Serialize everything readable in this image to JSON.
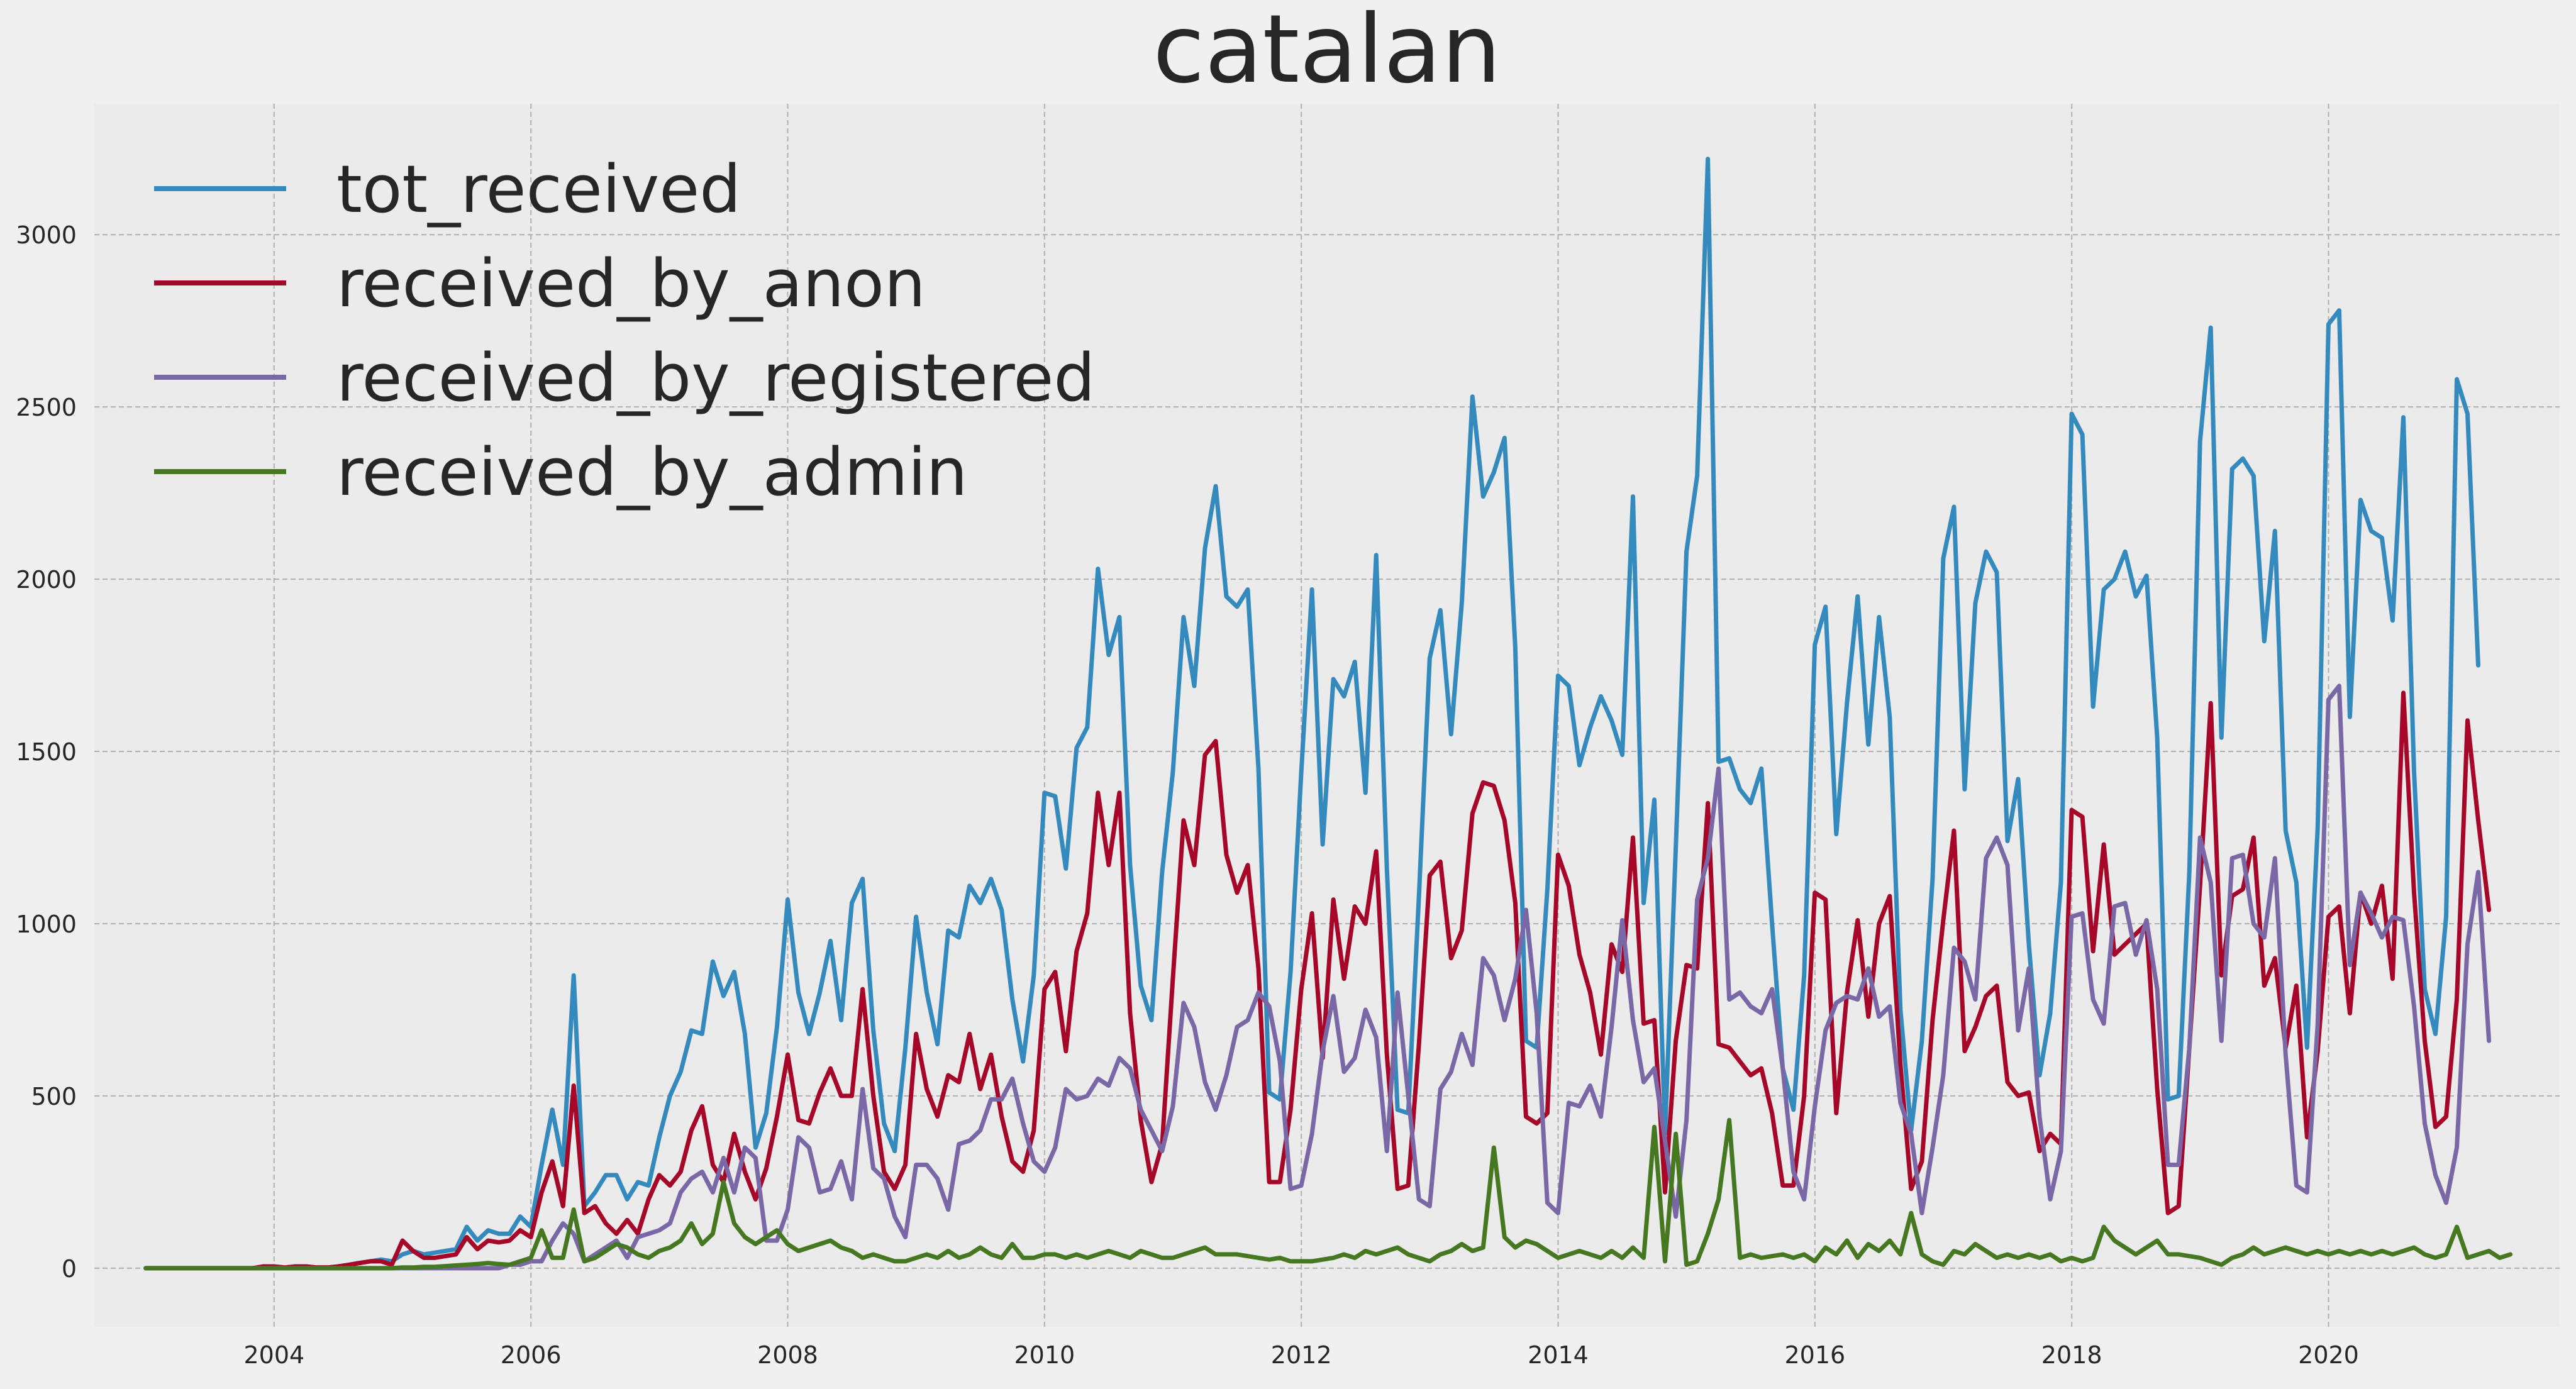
{
  "chart_data": {
    "type": "line",
    "title": "catalan",
    "xlabel": "",
    "ylabel": "",
    "xlim": [
      2002.6,
      2021.8
    ],
    "ylim": [
      -170,
      3380
    ],
    "xticks": [
      2004,
      2006,
      2008,
      2010,
      2012,
      2014,
      2016,
      2018,
      2020
    ],
    "yticks": [
      0,
      500,
      1000,
      1500,
      2000,
      2500,
      3000
    ],
    "grid": true,
    "legend_position": "top-left",
    "x_start": 2003.0,
    "x_step": 0.08333,
    "series": [
      {
        "name": "tot_received",
        "color": "#348abd",
        "values": [
          0,
          0,
          0,
          0,
          0,
          0,
          0,
          0,
          0,
          0,
          0,
          5,
          5,
          2,
          5,
          5,
          2,
          2,
          5,
          10,
          15,
          20,
          25,
          20,
          40,
          50,
          40,
          45,
          50,
          55,
          120,
          80,
          110,
          100,
          100,
          150,
          120,
          300,
          460,
          300,
          850,
          180,
          220,
          270,
          270,
          200,
          250,
          240,
          380,
          500,
          570,
          690,
          680,
          890,
          790,
          860,
          680,
          350,
          450,
          700,
          1070,
          800,
          680,
          800,
          950,
          720,
          1060,
          1130,
          690,
          420,
          340,
          640,
          1020,
          800,
          650,
          980,
          960,
          1110,
          1060,
          1130,
          1040,
          780,
          600,
          850,
          1380,
          1370,
          1160,
          1510,
          1570,
          2030,
          1780,
          1890,
          1170,
          820,
          720,
          1150,
          1440,
          1890,
          1690,
          2090,
          2270,
          1950,
          1920,
          1970,
          1450,
          510,
          490,
          860,
          1440,
          1970,
          1230,
          1710,
          1660,
          1760,
          1380,
          2070,
          1160,
          460,
          450,
          1080,
          1770,
          1910,
          1550,
          1930,
          2530,
          2240,
          2310,
          2410,
          1800,
          660,
          640,
          1100,
          1720,
          1690,
          1460,
          1570,
          1660,
          1590,
          1490,
          2240,
          1060,
          1360,
          390,
          1220,
          2080,
          2300,
          3220,
          1470,
          1480,
          1390,
          1350,
          1450,
          1000,
          580,
          460,
          850,
          1810,
          1920,
          1260,
          1640,
          1950,
          1520,
          1890,
          1600,
          750,
          400,
          660,
          1130,
          2060,
          2210,
          1390,
          1930,
          2080,
          2020,
          1240,
          1420,
          940,
          560,
          740,
          1120,
          2480,
          2420,
          1630,
          1970,
          2000,
          2080,
          1950,
          2010,
          1540,
          490,
          500,
          1150,
          2400,
          2730,
          1540,
          2320,
          2350,
          2300,
          1820,
          2140,
          1270,
          1120,
          640,
          1280,
          2740,
          2780,
          1600,
          2230,
          2140,
          2120,
          1880,
          2470,
          1440,
          810,
          680,
          1020,
          2580,
          2480,
          1750
        ]
      },
      {
        "name": "received_by_anon",
        "color": "#a60628",
        "values": [
          0,
          0,
          0,
          0,
          0,
          0,
          0,
          0,
          0,
          0,
          0,
          5,
          5,
          2,
          5,
          5,
          2,
          2,
          5,
          10,
          15,
          20,
          20,
          10,
          80,
          50,
          30,
          30,
          35,
          40,
          90,
          55,
          80,
          75,
          80,
          110,
          90,
          220,
          310,
          180,
          530,
          160,
          180,
          130,
          100,
          140,
          100,
          200,
          270,
          240,
          280,
          400,
          470,
          300,
          250,
          390,
          280,
          200,
          290,
          440,
          620,
          430,
          420,
          510,
          580,
          500,
          500,
          810,
          500,
          280,
          230,
          300,
          680,
          520,
          440,
          560,
          540,
          680,
          520,
          620,
          440,
          310,
          280,
          400,
          810,
          860,
          630,
          920,
          1030,
          1380,
          1170,
          1380,
          740,
          430,
          250,
          360,
          840,
          1300,
          1170,
          1490,
          1530,
          1200,
          1090,
          1170,
          870,
          250,
          250,
          460,
          810,
          1030,
          610,
          1070,
          840,
          1050,
          1000,
          1210,
          620,
          230,
          240,
          650,
          1140,
          1180,
          900,
          980,
          1320,
          1410,
          1400,
          1300,
          1060,
          440,
          420,
          450,
          1200,
          1110,
          910,
          800,
          620,
          940,
          860,
          1250,
          710,
          720,
          220,
          660,
          880,
          870,
          1350,
          650,
          640,
          600,
          560,
          580,
          450,
          240,
          240,
          500,
          1090,
          1070,
          450,
          800,
          1010,
          730,
          1000,
          1080,
          590,
          230,
          310,
          720,
          1010,
          1270,
          630,
          700,
          790,
          820,
          540,
          500,
          510,
          340,
          390,
          360,
          1330,
          1310,
          920,
          1230,
          910,
          940,
          970,
          1000,
          520,
          160,
          180,
          640,
          1110,
          1640,
          850,
          1080,
          1100,
          1250,
          820,
          900,
          640,
          820,
          380,
          630,
          1020,
          1050,
          740,
          1090,
          1000,
          1110,
          840,
          1670,
          1090,
          660,
          410,
          440,
          780,
          1590,
          1300,
          1040
        ]
      },
      {
        "name": "received_by_registered",
        "color": "#7a68a6",
        "values": [
          0,
          0,
          0,
          0,
          0,
          0,
          0,
          0,
          0,
          0,
          0,
          0,
          0,
          0,
          0,
          0,
          0,
          0,
          0,
          0,
          0,
          0,
          0,
          0,
          0,
          0,
          0,
          0,
          0,
          0,
          0,
          0,
          0,
          0,
          10,
          10,
          20,
          20,
          80,
          130,
          100,
          20,
          40,
          60,
          80,
          30,
          90,
          100,
          110,
          130,
          220,
          260,
          280,
          220,
          320,
          220,
          350,
          320,
          80,
          80,
          170,
          380,
          350,
          220,
          230,
          310,
          200,
          520,
          290,
          260,
          150,
          90,
          300,
          300,
          260,
          170,
          360,
          370,
          400,
          490,
          490,
          550,
          420,
          310,
          280,
          350,
          520,
          490,
          500,
          550,
          530,
          610,
          580,
          460,
          400,
          340,
          470,
          770,
          700,
          540,
          460,
          560,
          700,
          720,
          800,
          760,
          600,
          230,
          240,
          390,
          630,
          790,
          570,
          610,
          750,
          670,
          340,
          800,
          500,
          200,
          180,
          520,
          570,
          680,
          590,
          900,
          850,
          720,
          840,
          1040,
          740,
          190,
          160,
          480,
          470,
          530,
          440,
          700,
          1010,
          720,
          540,
          580,
          370,
          150,
          430,
          1070,
          1190,
          1450,
          780,
          800,
          760,
          740,
          810,
          580,
          280,
          200,
          470,
          690,
          770,
          790,
          780,
          870,
          730,
          760,
          480,
          390,
          160,
          350,
          560,
          930,
          890,
          780,
          1190,
          1250,
          1170,
          690,
          870,
          440,
          200,
          340,
          1020,
          1030,
          780,
          710,
          1050,
          1060,
          910,
          1010,
          810,
          300,
          300,
          640,
          1250,
          1120,
          660,
          1190,
          1200,
          1000,
          960,
          1190,
          620,
          240,
          220,
          710,
          1650,
          1690,
          880,
          1090,
          1030,
          960,
          1020,
          1010,
          760,
          420,
          270,
          190,
          350,
          940,
          1150,
          660
        ]
      },
      {
        "name": "received_by_admin",
        "color": "#467821",
        "values": [
          0,
          0,
          0,
          0,
          0,
          0,
          0,
          0,
          0,
          0,
          0,
          0,
          0,
          0,
          0,
          0,
          0,
          0,
          0,
          0,
          0,
          0,
          0,
          0,
          2,
          2,
          4,
          4,
          6,
          8,
          10,
          12,
          15,
          12,
          10,
          20,
          30,
          110,
          30,
          30,
          170,
          20,
          30,
          50,
          70,
          60,
          40,
          30,
          50,
          60,
          80,
          130,
          70,
          100,
          250,
          130,
          90,
          70,
          90,
          110,
          70,
          50,
          60,
          70,
          80,
          60,
          50,
          30,
          40,
          30,
          20,
          20,
          30,
          40,
          30,
          50,
          30,
          40,
          60,
          40,
          30,
          70,
          30,
          30,
          40,
          40,
          30,
          40,
          30,
          40,
          50,
          40,
          30,
          50,
          40,
          30,
          30,
          40,
          50,
          60,
          40,
          40,
          40,
          35,
          30,
          25,
          30,
          20,
          20,
          20,
          25,
          30,
          40,
          30,
          50,
          40,
          50,
          60,
          40,
          30,
          20,
          40,
          50,
          70,
          50,
          60,
          350,
          90,
          60,
          80,
          70,
          50,
          30,
          40,
          50,
          40,
          30,
          50,
          30,
          60,
          30,
          410,
          20,
          390,
          10,
          20,
          100,
          200,
          430,
          30,
          40,
          30,
          35,
          40,
          30,
          40,
          20,
          60,
          40,
          80,
          30,
          70,
          50,
          80,
          40,
          160,
          40,
          20,
          10,
          50,
          40,
          70,
          50,
          30,
          40,
          30,
          40,
          30,
          40,
          20,
          30,
          20,
          30,
          120,
          80,
          60,
          40,
          60,
          80,
          40,
          40,
          35,
          30,
          20,
          10,
          30,
          40,
          60,
          40,
          50,
          60,
          50,
          40,
          50,
          40,
          50,
          40,
          50,
          40,
          50,
          40,
          50,
          60,
          40,
          30,
          40,
          120,
          30,
          40,
          50,
          30,
          40
        ]
      }
    ]
  }
}
